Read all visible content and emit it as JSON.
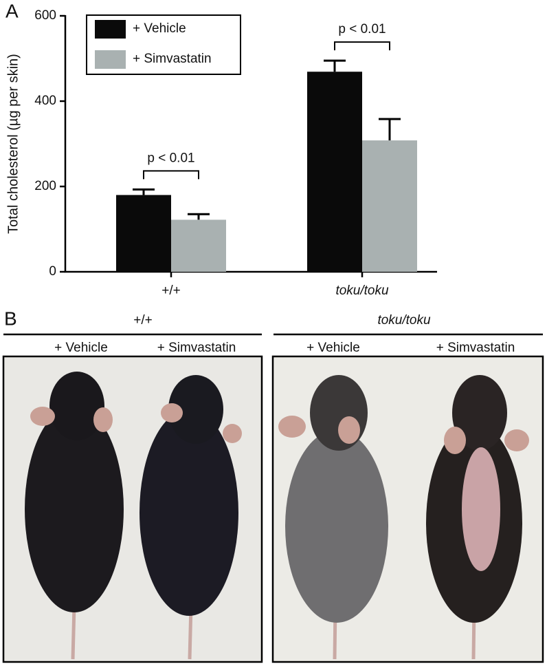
{
  "panel_labels": [
    "A",
    "B"
  ],
  "chart_data": {
    "type": "bar",
    "ylabel": "Total cholesterol (µg per skin)",
    "categories": [
      "+/+",
      "toku/toku"
    ],
    "series": [
      {
        "name": "+ Vehicle",
        "color": "#0a0a0a",
        "values": [
          180,
          469
        ],
        "errors": [
          13,
          26
        ]
      },
      {
        "name": "+ Simvastatin",
        "color": "#a9b1b1",
        "values": [
          122,
          308
        ],
        "errors": [
          13,
          50
        ]
      }
    ],
    "ylim": [
      0,
      600
    ],
    "yticks": [
      0,
      200,
      400,
      600
    ],
    "annotations": [
      "p < 0.01",
      "p < 0.01"
    ],
    "legend": "upper left"
  },
  "panel_b": {
    "groups": [
      {
        "title": "+/+",
        "conditions": [
          "+ Vehicle",
          "+ Simvastatin"
        ]
      },
      {
        "title": "toku/toku",
        "conditions": [
          "+ Vehicle",
          "+ Simvastatin"
        ]
      }
    ]
  }
}
